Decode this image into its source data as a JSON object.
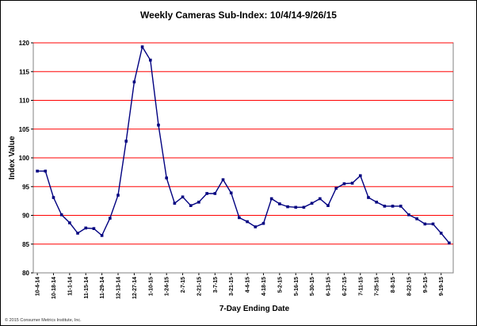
{
  "chart_data": {
    "type": "line",
    "title": "Weekly Cameras Sub-Index: 10/4/14-9/26/15",
    "xlabel": "7-Day Ending Date",
    "ylabel": "Index Value",
    "ylim": [
      80,
      120
    ],
    "yticks": [
      80,
      85,
      90,
      95,
      100,
      105,
      110,
      115,
      120
    ],
    "grid": true,
    "colors": {
      "line": "#000080",
      "grid": "#ff0000",
      "marker": "#000080"
    },
    "x_tick_labels": [
      "10-4-14",
      "10-18-14",
      "11-1-14",
      "11-15-14",
      "11-29-14",
      "12-13-14",
      "12-27-14",
      "1-10-15",
      "1-24-15",
      "2-7-15",
      "2-21-15",
      "3-7-15",
      "3-21-15",
      "4-4-15",
      "4-18-15",
      "5-2-15",
      "5-16-15",
      "5-30-15",
      "6-13-15",
      "6-27-15",
      "7-11-15",
      "7-25-15",
      "8-8-15",
      "8-22-15",
      "9-5-15",
      "9-19-15"
    ],
    "series": [
      {
        "values": [
          97.7,
          97.7,
          93.1,
          90.1,
          88.7,
          86.9,
          87.8,
          87.7,
          86.5,
          89.5,
          93.5,
          102.9,
          113.2,
          119.3,
          117.0,
          105.7,
          96.5,
          92.1,
          93.2,
          91.7,
          92.3,
          93.8,
          93.8,
          96.2,
          93.9,
          89.6,
          88.9,
          88.0,
          88.6,
          92.9,
          92.0,
          91.5,
          91.4,
          91.4,
          92.1,
          92.9,
          91.7,
          94.7,
          95.5,
          95.6,
          96.9,
          93.1,
          92.3,
          91.6,
          91.6,
          91.6,
          90.1,
          89.4,
          88.5,
          88.5,
          86.9,
          85.2
        ]
      }
    ]
  },
  "footer": {
    "copyright": "© 2015 Consumer Metrics Institute, Inc."
  }
}
